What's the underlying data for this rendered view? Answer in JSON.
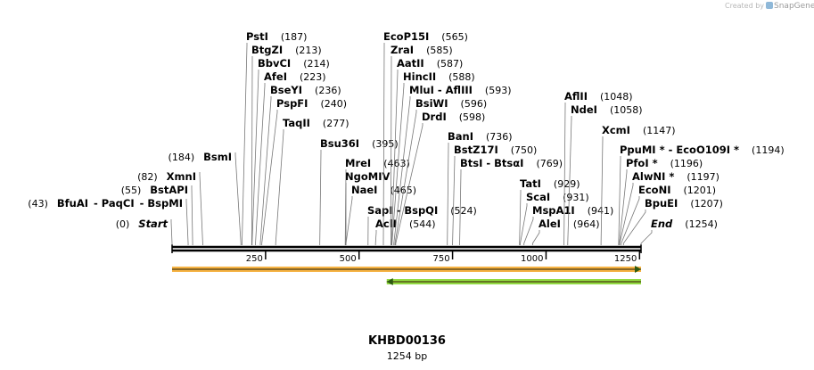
{
  "credit": {
    "prefix": "Created by",
    "brand": "SnapGene"
  },
  "sequence": {
    "name": "KHBD00136",
    "length_label": "1254 bp",
    "length": 1254
  },
  "ruler": {
    "ticks": [
      250,
      500,
      750,
      1000,
      1250
    ]
  },
  "sites": [
    {
      "name": "Start",
      "pos": "(0)",
      "bp": 0,
      "side": "left",
      "italic": true
    },
    {
      "name": "BfuAI",
      "pos": "(43)",
      "bp": 43,
      "side": "left",
      "group": "bfu"
    },
    {
      "name": "PaqCI",
      "bp": 43,
      "side": "left",
      "group": "bfu"
    },
    {
      "name": "BspMI",
      "bp": 43,
      "side": "left",
      "group": "bfu"
    },
    {
      "name": "BstAPI",
      "pos": "(55)",
      "bp": 55,
      "side": "left"
    },
    {
      "name": "XmnI",
      "pos": "(82)",
      "bp": 82,
      "side": "left"
    },
    {
      "name": "BsmI",
      "pos": "(184)",
      "bp": 184,
      "side": "left"
    },
    {
      "name": "PstI",
      "pos": "(187)",
      "bp": 187,
      "side": "right"
    },
    {
      "name": "BtgZI",
      "pos": "(213)",
      "bp": 213,
      "side": "right"
    },
    {
      "name": "BbvCI",
      "pos": "(214)",
      "bp": 214,
      "side": "right"
    },
    {
      "name": "AfeI",
      "pos": "(223)",
      "bp": 223,
      "side": "right"
    },
    {
      "name": "BseYI",
      "pos": "(236)",
      "bp": 236,
      "side": "right"
    },
    {
      "name": "PspFI",
      "pos": "(240)",
      "bp": 240,
      "side": "right"
    },
    {
      "name": "TaqII",
      "pos": "(277)",
      "bp": 277,
      "side": "right"
    },
    {
      "name": "Bsu36I",
      "pos": "(395)",
      "bp": 395,
      "side": "right"
    },
    {
      "name": "MreI",
      "pos": "(463)",
      "bp": 463,
      "side": "right"
    },
    {
      "name": "NgoMIV",
      "bp": 465,
      "side": "right"
    },
    {
      "name": "NaeI",
      "pos": "(465)",
      "bp": 465,
      "side": "right"
    },
    {
      "name": "SapI",
      "bp": 524,
      "side": "right",
      "group": "sap"
    },
    {
      "name": "BspQI",
      "pos": "(524)",
      "bp": 524,
      "side": "right",
      "group": "sap"
    },
    {
      "name": "AclI",
      "pos": "(544)",
      "bp": 544,
      "side": "right"
    },
    {
      "name": "EcoP15I",
      "pos": "(565)",
      "bp": 565,
      "side": "right"
    },
    {
      "name": "ZraI",
      "pos": "(585)",
      "bp": 585,
      "side": "right"
    },
    {
      "name": "AatII",
      "pos": "(587)",
      "bp": 587,
      "side": "right"
    },
    {
      "name": "HincII",
      "pos": "(588)",
      "bp": 588,
      "side": "right"
    },
    {
      "name": "MluI",
      "bp": 593,
      "side": "right",
      "group": "mlu"
    },
    {
      "name": "AflIII",
      "pos": "(593)",
      "bp": 593,
      "side": "right",
      "group": "mlu"
    },
    {
      "name": "BsiWI",
      "pos": "(596)",
      "bp": 596,
      "side": "right"
    },
    {
      "name": "DrdI",
      "pos": "(598)",
      "bp": 598,
      "side": "right"
    },
    {
      "name": "BanI",
      "pos": "(736)",
      "bp": 736,
      "side": "right"
    },
    {
      "name": "BstZ17I",
      "pos": "(750)",
      "bp": 750,
      "side": "right"
    },
    {
      "name": "BtsI",
      "bp": 769,
      "side": "right",
      "group": "bts"
    },
    {
      "name": "BtsαI",
      "pos": "(769)",
      "bp": 769,
      "side": "right",
      "group": "bts"
    },
    {
      "name": "TatI",
      "pos": "(929)",
      "bp": 929,
      "side": "right"
    },
    {
      "name": "ScaI",
      "pos": "(931)",
      "bp": 931,
      "side": "right"
    },
    {
      "name": "MspA1I",
      "pos": "(941)",
      "bp": 941,
      "side": "right"
    },
    {
      "name": "AleI",
      "pos": "(964)",
      "bp": 964,
      "side": "right"
    },
    {
      "name": "AflII",
      "pos": "(1048)",
      "bp": 1048,
      "side": "right"
    },
    {
      "name": "NdeI",
      "pos": "(1058)",
      "bp": 1058,
      "side": "right"
    },
    {
      "name": "XcmI",
      "pos": "(1147)",
      "bp": 1147,
      "side": "right"
    },
    {
      "name": "PpuMI *",
      "bp": 1194,
      "side": "right",
      "group": "ppu"
    },
    {
      "name": "EcoO109I *",
      "pos": "(1194)",
      "bp": 1194,
      "side": "right",
      "group": "ppu"
    },
    {
      "name": "PfoI *",
      "pos": "(1196)",
      "bp": 1196,
      "side": "right"
    },
    {
      "name": "AlwNI *",
      "pos": "(1197)",
      "bp": 1197,
      "side": "right"
    },
    {
      "name": "EcoNI",
      "pos": "(1201)",
      "bp": 1201,
      "side": "right"
    },
    {
      "name": "BpuEI",
      "pos": "(1207)",
      "bp": 1207,
      "side": "right"
    },
    {
      "name": "End",
      "pos": "(1254)",
      "bp": 1254,
      "side": "right",
      "italic": true
    }
  ],
  "features": [
    {
      "name": "feature-orange",
      "start": 0,
      "end": 1254,
      "direction": "forward",
      "color": "#f5a623",
      "border": "#c98a1a"
    },
    {
      "name": "feature-green",
      "start": 574,
      "end": 1254,
      "direction": "reverse",
      "color": "#7ed321",
      "border": "#5aa218"
    }
  ]
}
